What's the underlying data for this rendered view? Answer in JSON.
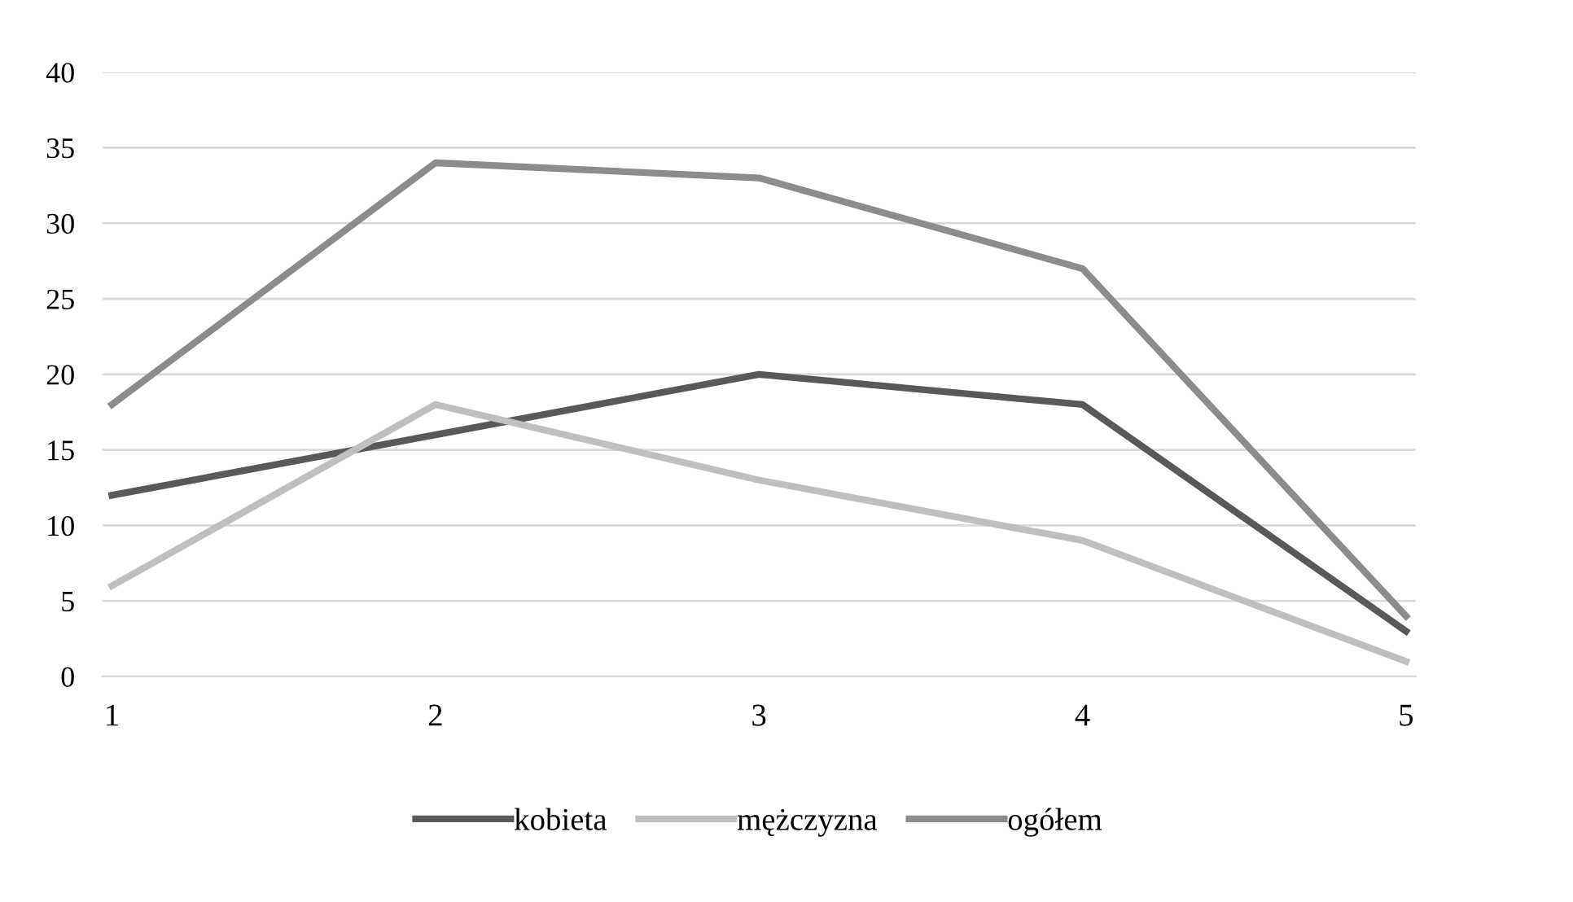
{
  "chart_data": {
    "type": "line",
    "categories": [
      "1",
      "2",
      "3",
      "4",
      "5"
    ],
    "series": [
      {
        "name": "kobieta",
        "color": "#595959",
        "values": [
          12,
          16,
          20,
          18,
          3
        ]
      },
      {
        "name": "mężczyzna",
        "color": "#bfbfbf",
        "values": [
          6,
          18,
          13,
          9,
          1
        ]
      },
      {
        "name": "ogółem",
        "color": "#8c8c8c",
        "values": [
          18,
          34,
          33,
          27,
          4
        ]
      }
    ],
    "ylim": [
      0,
      40
    ],
    "yticks": [
      0,
      5,
      10,
      15,
      20,
      25,
      30,
      35,
      40
    ],
    "grid": "y",
    "legend": "bottom",
    "marker": "none",
    "line_style": "solid"
  }
}
